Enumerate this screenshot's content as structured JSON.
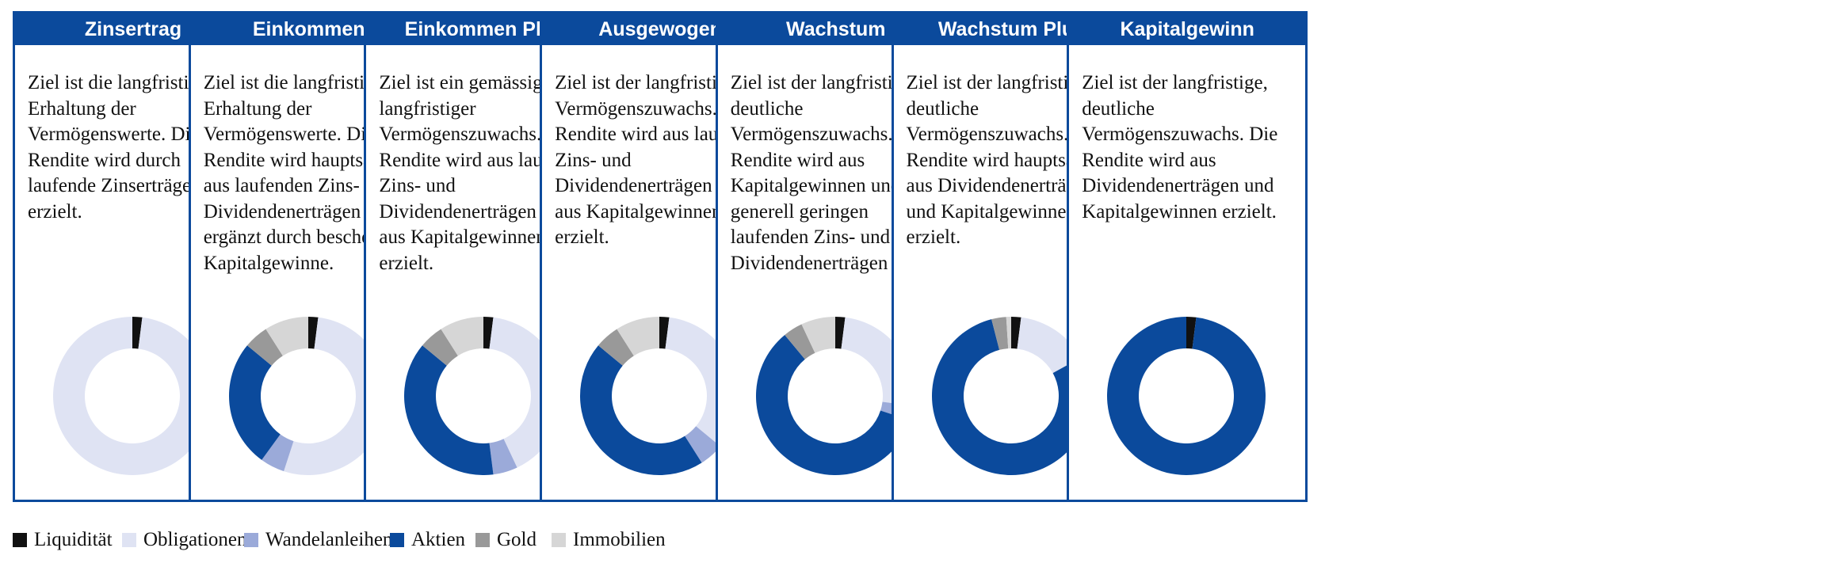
{
  "categories": [
    "Liquidität",
    "Obligationen",
    "Wandelanleihen",
    "Aktien",
    "Gold",
    "Immobilien"
  ],
  "colors": {
    "Liquidität": "#111111",
    "Obligationen": "#dfe3f3",
    "Wandelanleihen": "#9baad9",
    "Aktien": "#0b4a9c",
    "Gold": "#999999",
    "Immobilien": "#d6d6d6"
  },
  "header_color": "#0b4a9c",
  "legend": {
    "items": [
      "Liquidität",
      "Obligationen",
      "Wandelanleihen",
      "Aktien",
      "Gold",
      "Immobilien"
    ]
  },
  "cards": [
    {
      "title": "Zinsertrag",
      "text": "Ziel ist die langfristige Erhaltung der Vermögenswerte. Die Rendite wird durch laufende Zinserträge erzielt."
    },
    {
      "title": "Einkommen",
      "text": "Ziel ist die langfristige Erhaltung der Vermögenswerte. Die Rendite wird hauptsächlich aus laufenden Zins- und Dividendenerträgen erzielt, ergänzt durch bescheidene Kapitalgewinne."
    },
    {
      "title": "Einkommen Plus",
      "text": "Ziel ist ein gemässigter, langfristiger Vermögenszuwachs. Die Rendite wird aus laufenden Zins- und Dividendenerträgen sowie aus Kapitalgewinnen erzielt."
    },
    {
      "title": "Ausgewogen",
      "text": "Ziel ist der langfristige Vermögenszuwachs. Die Rendite wird aus laufenden Zins- und Dividendenerträgen sowie aus Kapitalgewinnen erzielt."
    },
    {
      "title": "Wachstum",
      "text": "Ziel ist der langfristige deutliche Vermögenszuwachs. Die Rendite wird aus Kapitalgewinnen und generell geringen laufenden Zins- und Dividendenerträgen erzielt."
    },
    {
      "title": "Wachstum Plus",
      "text": "Ziel ist der langfristige, deutliche Vermögenszuwachs. Die Rendite wird hauptsächlich aus Dividendenerträgen und Kapitalgewinnen erzielt."
    },
    {
      "title": "Kapitalgewinn",
      "text": "Ziel ist der langfristige, deutliche Vermögenszuwachs. Die Rendite wird aus Dividendenerträgen und Kapitalgewinnen erzielt."
    }
  ],
  "chart_data": {
    "type": "pie",
    "variant": "donut",
    "categories": [
      "Liquidität",
      "Obligationen",
      "Wandelanleihen",
      "Aktien",
      "Gold",
      "Immobilien"
    ],
    "charts": [
      {
        "title": "Zinsertrag",
        "values": [
          2,
          98,
          0,
          0,
          0,
          0
        ]
      },
      {
        "title": "Einkommen",
        "values": [
          2,
          53,
          5,
          26,
          5,
          9
        ]
      },
      {
        "title": "Einkommen Plus",
        "values": [
          2,
          41,
          5,
          38,
          5,
          9
        ]
      },
      {
        "title": "Ausgewogen",
        "values": [
          2,
          34,
          5,
          45,
          5,
          9
        ]
      },
      {
        "title": "Wachstum",
        "values": [
          2,
          25,
          3,
          59,
          4,
          7
        ]
      },
      {
        "title": "Wachstum Plus",
        "values": [
          2,
          15,
          0,
          79,
          3,
          1
        ]
      },
      {
        "title": "Kapitalgewinn",
        "values": [
          2,
          0,
          0,
          98,
          0,
          0
        ]
      }
    ]
  }
}
